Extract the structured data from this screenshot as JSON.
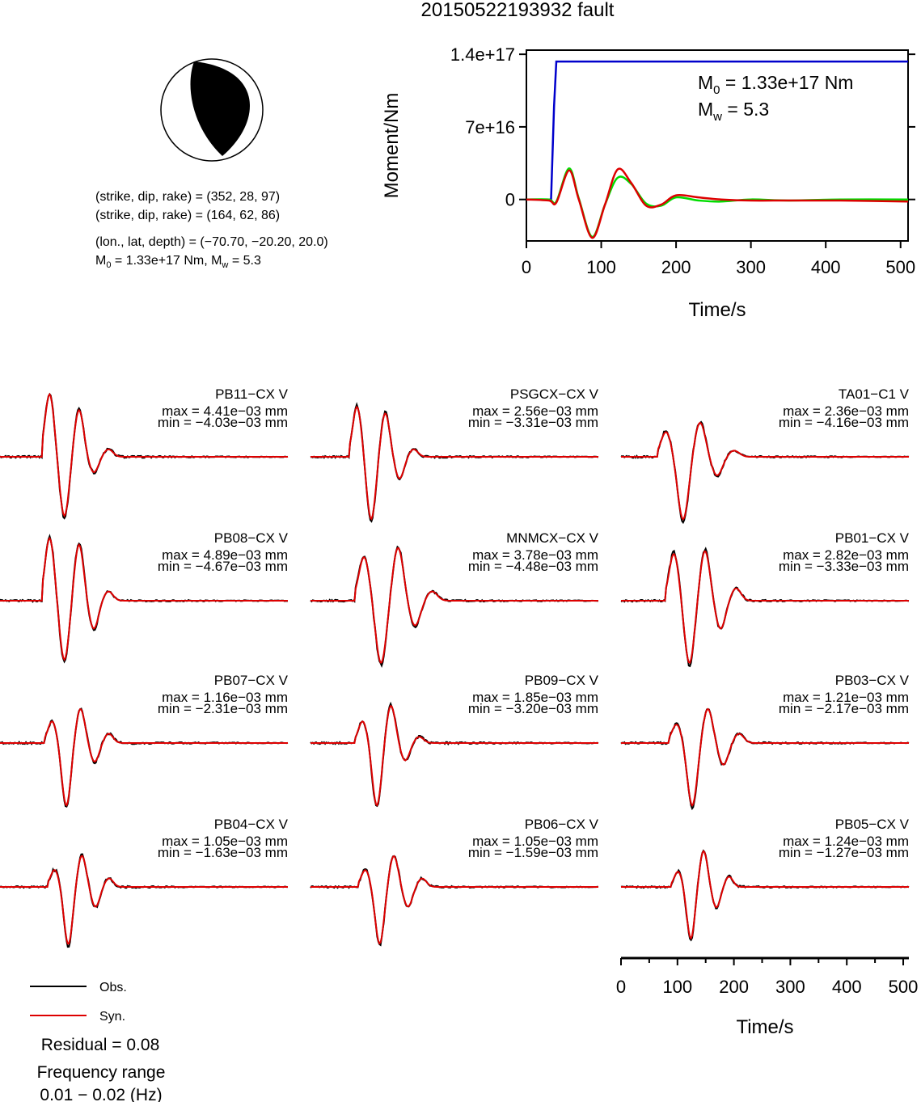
{
  "title": "20150522193932 fault",
  "mechanism": {
    "lines": [
      "(strike, dip, rake) = (352, 28, 97)",
      "(strike, dip, rake) = (164, 62, 86)",
      "(lon., lat, depth) = (−70.70, −20.20, 20.0)"
    ],
    "m0_prefix": "M",
    "m0_sub": "0",
    "m0_rest": " = 1.33e+17 Nm, M",
    "mw_sub": "w",
    "mw_rest": " = 5.3"
  },
  "moment_chart": {
    "type": "line",
    "ylabel": "Moment/Nm",
    "xlabel": "Time/s",
    "xlim": [
      0,
      510
    ],
    "ylim": [
      -4e+16,
      1.44e+17
    ],
    "xticks": [
      "0",
      "100",
      "200",
      "300",
      "400",
      "500"
    ],
    "yticks": [
      "1.4e+17",
      "7e+16",
      "0"
    ],
    "m0_label": "M",
    "m0_sub": "0",
    "m0_text": " = 1.33e+17 Nm",
    "mw_label": "M",
    "mw_sub": "w",
    "mw_text": " = 5.3",
    "series": [
      {
        "color": "#0000cc",
        "x": [
          0,
          33,
          37,
          40,
          510
        ],
        "y": [
          0,
          0,
          9e+16,
          1.33e+17,
          1.33e+17
        ]
      },
      {
        "color": "#00dd00",
        "x": [
          0,
          30,
          40,
          57,
          70,
          88,
          105,
          122,
          140,
          160,
          180,
          200,
          230,
          260,
          300,
          350,
          420,
          510
        ],
        "y": [
          0,
          0,
          -2000000000000000.0,
          3e+16,
          1000000000000000.0,
          -3.6e+16,
          -5000000000000000.0,
          2.1e+16,
          1.5e+16,
          -4000000000000000.0,
          -6000000000000000.0,
          2000000000000000.0,
          -1000000000000000.0,
          -2000000000000000.0,
          0,
          -1000000000000000.0,
          0,
          0
        ]
      },
      {
        "color": "#dd0000",
        "x": [
          0,
          30,
          40,
          57,
          70,
          88,
          105,
          122,
          140,
          160,
          180,
          200,
          230,
          260,
          300,
          350,
          420,
          510
        ],
        "y": [
          0,
          -1000000000000000.0,
          -3000000000000000.0,
          2.8e+16,
          0,
          -3.7e+16,
          -5000000000000000.0,
          2.9e+16,
          1.6e+16,
          -6000000000000000.0,
          -5000000000000000.0,
          4000000000000000.0,
          2000000000000000.0,
          0,
          -1000000000000000.0,
          -1000000000000000.0,
          -1000000000000000.0,
          -2000000000000000.0
        ]
      }
    ]
  },
  "chart_data": {
    "type": "line",
    "xlabel": "Time/s",
    "xticks": [
      "0",
      "100",
      "200",
      "300",
      "400",
      "500"
    ],
    "xlim": [
      0,
      510
    ],
    "stations": [
      {
        "name": "PB11−CX V",
        "max": "max = 4.41e−03 mm",
        "min": "min = −4.03e−03 mm",
        "vmax": 4.41,
        "vmin": -4.03,
        "onset": 75,
        "period": 52,
        "amps": [
          1.0,
          -0.95,
          0.75,
          -0.25,
          0.12
        ]
      },
      {
        "name": "PSGCX−CX V",
        "max": "max = 2.56e−03 mm",
        "min": "min = −3.31e−03 mm",
        "vmax": 2.56,
        "vmin": -3.31,
        "onset": 70,
        "period": 50,
        "amps": [
          0.8,
          -1.0,
          0.7,
          -0.35,
          0.12
        ]
      },
      {
        "name": "TA01−C1 V",
        "max": "max = 2.36e−03 mm",
        "min": "min = −4.16e−03 mm",
        "vmax": 2.36,
        "vmin": -4.16,
        "onset": 65,
        "period": 60,
        "amps": [
          0.4,
          -1.0,
          0.55,
          -0.3,
          0.1
        ]
      },
      {
        "name": "PB08−CX V",
        "max": "max = 4.89e−03 mm",
        "min": "min = −4.67e−03 mm",
        "vmax": 4.89,
        "vmin": -4.67,
        "onset": 75,
        "period": 52,
        "amps": [
          1.0,
          -0.95,
          0.9,
          -0.45,
          0.15
        ]
      },
      {
        "name": "MNMCX−CX V",
        "max": "max = 3.78e−03 mm",
        "min": "min = −4.48e−03 mm",
        "vmax": 3.78,
        "vmin": -4.48,
        "onset": 80,
        "period": 60,
        "amps": [
          0.7,
          -1.0,
          0.85,
          -0.4,
          0.15
        ]
      },
      {
        "name": "PB01−CX V",
        "max": "max = 2.82e−03 mm",
        "min": "min = −3.33e−03 mm",
        "vmax": 2.82,
        "vmin": -3.33,
        "onset": 80,
        "period": 55,
        "amps": [
          0.75,
          -1.0,
          0.8,
          -0.45,
          0.2
        ]
      },
      {
        "name": "PB07−CX V",
        "max": "max = 1.16e−03 mm",
        "min": "min = −2.31e−03 mm",
        "vmax": 1.16,
        "vmin": -2.31,
        "onset": 80,
        "period": 50,
        "amps": [
          0.35,
          -1.0,
          0.55,
          -0.3,
          0.15
        ]
      },
      {
        "name": "PB09−CX V",
        "max": "max = 1.85e−03 mm",
        "min": "min = −3.20e−03 mm",
        "vmax": 1.85,
        "vmin": -3.2,
        "onset": 80,
        "period": 50,
        "amps": [
          0.35,
          -1.0,
          0.6,
          -0.28,
          0.1
        ]
      },
      {
        "name": "PB03−CX V",
        "max": "max = 1.21e−03 mm",
        "min": "min = −2.17e−03 mm",
        "vmax": 1.21,
        "vmin": -2.17,
        "onset": 85,
        "period": 55,
        "amps": [
          0.3,
          -1.0,
          0.55,
          -0.35,
          0.15
        ]
      },
      {
        "name": "PB04−CX V",
        "max": "max = 1.05e−03 mm",
        "min": "min = −1.63e−03 mm",
        "vmax": 1.05,
        "vmin": -1.63,
        "onset": 85,
        "period": 48,
        "amps": [
          0.3,
          -1.0,
          0.55,
          -0.35,
          0.15
        ]
      },
      {
        "name": "PB06−CX V",
        "max": "max = 1.05e−03 mm",
        "min": "min = −1.59e−03 mm",
        "vmax": 1.05,
        "vmin": -1.59,
        "onset": 85,
        "period": 50,
        "amps": [
          0.3,
          -1.0,
          0.55,
          -0.35,
          0.15
        ]
      },
      {
        "name": "PB05−CX V",
        "max": "max = 1.24e−03 mm",
        "min": "min = −1.27e−03 mm",
        "vmax": 1.24,
        "vmin": -1.27,
        "onset": 90,
        "period": 45,
        "amps": [
          0.3,
          -1.0,
          0.7,
          -0.4,
          0.2
        ]
      }
    ]
  },
  "legend": {
    "obs": "Obs.",
    "syn": "Syn.",
    "obs_color": "#000000",
    "syn_color": "#dd0000"
  },
  "residual": "Residual = 0.08",
  "freq_label": "Frequency range",
  "freq_value": "0.01 − 0.02 (Hz)"
}
